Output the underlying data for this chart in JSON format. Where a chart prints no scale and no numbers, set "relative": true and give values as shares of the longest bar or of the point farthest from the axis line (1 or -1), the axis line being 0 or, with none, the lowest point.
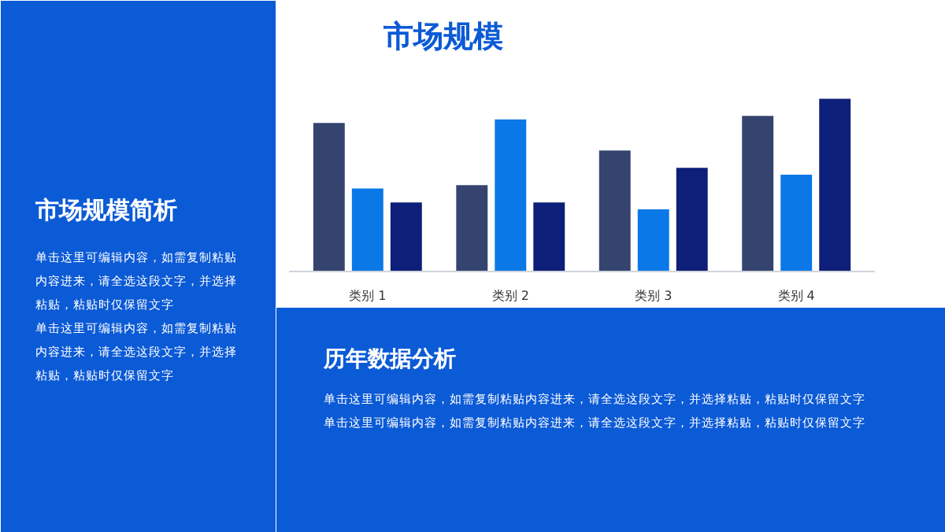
{
  "chart_data": {
    "type": "bar",
    "title": "市场规模",
    "relative": true,
    "categories": [
      "类别 1",
      "类别 2",
      "类别 3",
      "类别 4"
    ],
    "series": [
      {
        "color": "#34446f",
        "values": [
          0.86,
          0.5,
          0.7,
          0.9
        ]
      },
      {
        "color": "#0a78e6",
        "values": [
          0.48,
          0.88,
          0.36,
          0.56
        ]
      },
      {
        "color": "#0d1f78",
        "values": [
          0.4,
          0.4,
          0.6,
          1.0
        ]
      }
    ],
    "grid": false,
    "annotations": [
      "市场规模简析",
      "单击这里可编辑内容，如需复制粘贴",
      "内容进来，请全选这段文字，并选择",
      "粘贴，粘贴时仅保留文字",
      "单击这里可编辑内容，如需复制粘贴",
      "内容进来，请全选这段文字，并选择",
      "粘贴，粘贴时仅保留文字",
      "历年数据分析",
      "单击这里可编辑内容，如需复制粘贴内容进来，请全选这段文字，并选择粘贴，粘贴时仅保留文字",
      "单击这里可编辑内容，如需复制粘贴内容进来，请全选这段文字，并选择粘贴，粘贴时仅保留文字"
    ]
  }
}
